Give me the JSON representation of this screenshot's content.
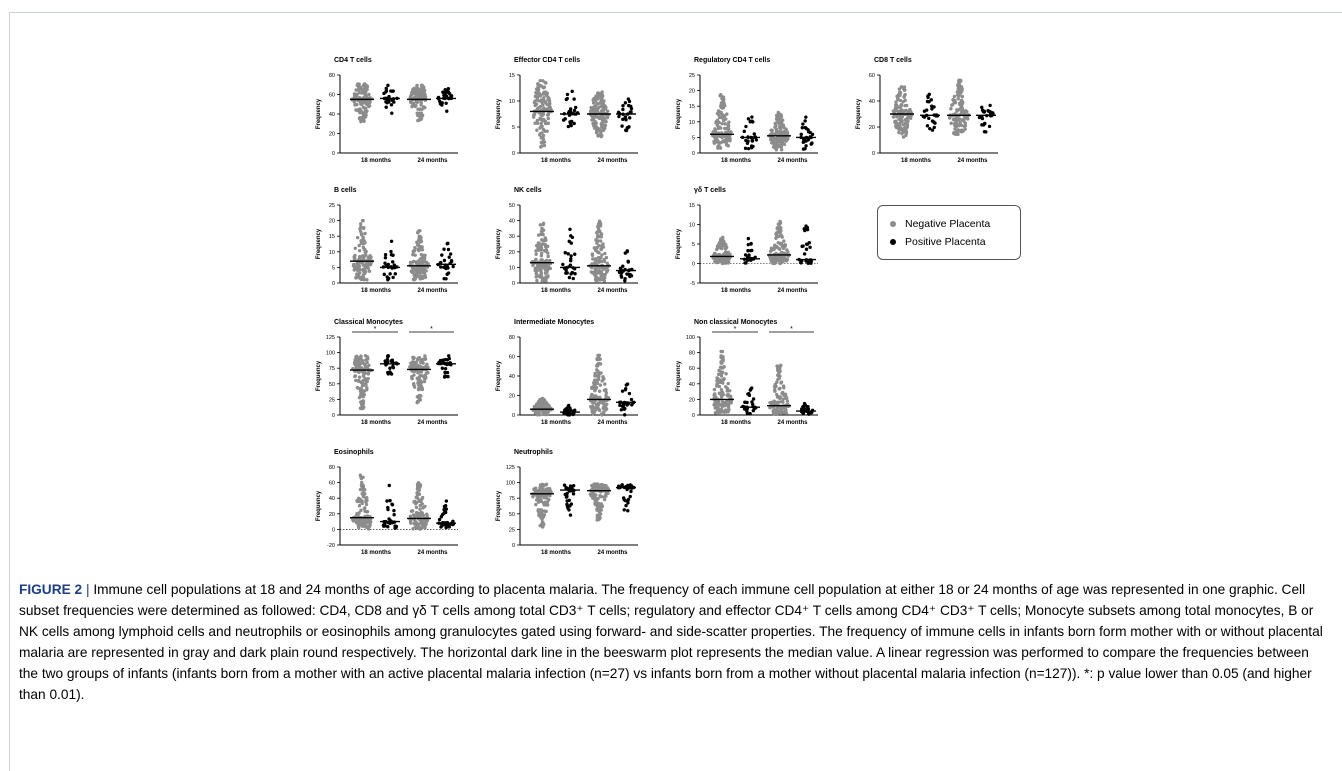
{
  "figure": {
    "label": "FIGURE 2",
    "separator": "|",
    "caption": "Immune cell populations at 18 and 24 months of age according to placenta malaria. The frequency of each immune cell population at either 18 or 24 months of age was represented in one graphic. Cell subset frequencies were determined as followed: CD4, CD8 and γδ T cells among total CD3⁺ T cells; regulatory and effector CD4⁺ T cells among CD4⁺ CD3⁺ T cells; Monocyte subsets among total monocytes, B or NK cells among lymphoid cells and neutrophils or eosinophils among granulocytes gated using forward- and side-scatter properties. The frequency of immune cells in infants born form mother with or without placental malaria are represented in gray and dark plain round respectively. The horizontal dark line in the beeswarm plot represents the median value. A linear regression was performed to compare the frequencies between the two groups of infants (infants born from a mother with an active placental malaria infection (n=27) vs infants born from a mother without placental malaria infection (n=127)). *: p value lower than 0.05 (and higher than 0.01)."
  },
  "legend": {
    "items": [
      {
        "label": "Negative Placenta",
        "color": "#8c8c8c"
      },
      {
        "label": "Positive Placenta",
        "color": "#000000"
      }
    ]
  },
  "colors": {
    "negative": "#8c8c8c",
    "positive": "#000000",
    "caption_label": "#1b3f8b"
  },
  "chart_data": [
    {
      "type": "scatter",
      "title": "CD4 T cells",
      "ylabel": "Frequency",
      "ylim": [
        0,
        80
      ],
      "yticks": [
        0,
        20,
        40,
        60,
        80
      ],
      "zero_line": false,
      "groups": [
        "18 months",
        "24 months"
      ],
      "series": [
        {
          "name": "Negative Placenta",
          "median": [
            55,
            55
          ],
          "range": [
            [
              32,
              72
            ],
            [
              33,
              70
            ]
          ],
          "n": 127
        },
        {
          "name": "Positive Placenta",
          "median": [
            56,
            56
          ],
          "range": [
            [
              40,
              70
            ],
            [
              42,
              68
            ]
          ],
          "n": 27
        }
      ],
      "significance": []
    },
    {
      "type": "scatter",
      "title": "Effector CD4 T cells",
      "ylabel": "Frequency",
      "ylim": [
        0,
        15
      ],
      "yticks": [
        0,
        5,
        10,
        15
      ],
      "zero_line": false,
      "groups": [
        "18 months",
        "24 months"
      ],
      "series": [
        {
          "name": "Negative Placenta",
          "median": [
            8,
            7.5
          ],
          "range": [
            [
              1,
              14
            ],
            [
              3,
              12
            ]
          ],
          "n": 127
        },
        {
          "name": "Positive Placenta",
          "median": [
            7.5,
            7.5
          ],
          "range": [
            [
              3.5,
              12
            ],
            [
              4,
              10.5
            ]
          ],
          "n": 27
        }
      ],
      "significance": []
    },
    {
      "type": "scatter",
      "title": "Regulatory CD4 T cells",
      "ylabel": "Frequency",
      "ylim": [
        0,
        25
      ],
      "yticks": [
        0,
        5,
        10,
        15,
        20,
        25
      ],
      "zero_line": false,
      "groups": [
        "18 months",
        "24 months"
      ],
      "series": [
        {
          "name": "Negative Placenta",
          "median": [
            6,
            5.5
          ],
          "range": [
            [
              1,
              19
            ],
            [
              1,
              13
            ]
          ],
          "n": 127
        },
        {
          "name": "Positive Placenta",
          "median": [
            5,
            5
          ],
          "range": [
            [
              1,
              12
            ],
            [
              1,
              12
            ]
          ],
          "n": 27
        }
      ],
      "significance": []
    },
    {
      "type": "scatter",
      "title": "CD8 T cells",
      "ylabel": "Frequency",
      "ylim": [
        0,
        60
      ],
      "yticks": [
        0,
        20,
        40,
        60
      ],
      "zero_line": false,
      "groups": [
        "18 months",
        "24 months"
      ],
      "series": [
        {
          "name": "Negative Placenta",
          "median": [
            30,
            29
          ],
          "range": [
            [
              12,
              52
            ],
            [
              14,
              56
            ]
          ],
          "n": 127
        },
        {
          "name": "Positive Placenta",
          "median": [
            29,
            29
          ],
          "range": [
            [
              17,
              46
            ],
            [
              15,
              38
            ]
          ],
          "n": 27
        }
      ],
      "significance": []
    },
    {
      "type": "scatter",
      "title": "B cells",
      "ylabel": "Frequency",
      "ylim": [
        0,
        25
      ],
      "yticks": [
        0,
        5,
        10,
        15,
        20,
        25
      ],
      "zero_line": false,
      "groups": [
        "18 months",
        "24 months"
      ],
      "series": [
        {
          "name": "Negative Placenta",
          "median": [
            7,
            5.5
          ],
          "range": [
            [
              1,
              20
            ],
            [
              1,
              17
            ]
          ],
          "n": 127
        },
        {
          "name": "Positive Placenta",
          "median": [
            5,
            6
          ],
          "range": [
            [
              1,
              14
            ],
            [
              1,
              13.5
            ]
          ],
          "n": 27
        }
      ],
      "significance": []
    },
    {
      "type": "scatter",
      "title": "NK cells",
      "ylabel": "Frequency",
      "ylim": [
        0,
        50
      ],
      "yticks": [
        0,
        10,
        20,
        30,
        40,
        50
      ],
      "zero_line": false,
      "groups": [
        "18 months",
        "24 months"
      ],
      "series": [
        {
          "name": "Negative Placenta",
          "median": [
            13,
            11
          ],
          "range": [
            [
              1,
              39
            ],
            [
              1,
              40
            ]
          ],
          "n": 127
        },
        {
          "name": "Positive Placenta",
          "median": [
            10,
            8
          ],
          "range": [
            [
              2,
              42
            ],
            [
              1,
              21
            ]
          ],
          "n": 27
        }
      ],
      "significance": []
    },
    {
      "type": "scatter",
      "title": "γδ T cells",
      "ylabel": "Frequency",
      "ylim": [
        -5,
        15
      ],
      "yticks": [
        -5,
        0,
        5,
        10,
        15
      ],
      "zero_line": true,
      "groups": [
        "18 months",
        "24 months"
      ],
      "series": [
        {
          "name": "Negative Placenta",
          "median": [
            1.8,
            2.2
          ],
          "range": [
            [
              0,
              7
            ],
            [
              0,
              11
            ]
          ],
          "n": 127
        },
        {
          "name": "Positive Placenta",
          "median": [
            1.2,
            1
          ],
          "range": [
            [
              0,
              6.5
            ],
            [
              0,
              11
            ]
          ],
          "n": 27
        }
      ],
      "significance": []
    },
    {
      "type": "scatter",
      "title": "Classical Monocytes",
      "ylabel": "Frequency",
      "ylim": [
        0,
        125
      ],
      "yticks": [
        0,
        25,
        50,
        75,
        100,
        125
      ],
      "zero_line": false,
      "groups": [
        "18 months",
        "24 months"
      ],
      "series": [
        {
          "name": "Negative Placenta",
          "median": [
            72,
            73
          ],
          "range": [
            [
              10,
              95
            ],
            [
              18,
              95
            ]
          ],
          "n": 127
        },
        {
          "name": "Positive Placenta",
          "median": [
            82,
            82
          ],
          "range": [
            [
              65,
              95
            ],
            [
              58,
              95
            ]
          ],
          "n": 27
        }
      ],
      "significance": [
        "*",
        "*"
      ]
    },
    {
      "type": "scatter",
      "title": "Intermediate Monocytes",
      "ylabel": "Frequency",
      "ylim": [
        0,
        80
      ],
      "yticks": [
        0,
        20,
        40,
        60,
        80
      ],
      "zero_line": false,
      "groups": [
        "18 months",
        "24 months"
      ],
      "series": [
        {
          "name": "Negative Placenta",
          "median": [
            6,
            16
          ],
          "range": [
            [
              0,
              17
            ],
            [
              0,
              62
            ]
          ],
          "n": 127
        },
        {
          "name": "Positive Placenta",
          "median": [
            3,
            13
          ],
          "range": [
            [
              0,
              10
            ],
            [
              0,
              33
            ]
          ],
          "n": 27
        }
      ],
      "significance": []
    },
    {
      "type": "scatter",
      "title": "Non classical Monocytes",
      "ylabel": "Frequency",
      "ylim": [
        0,
        100
      ],
      "yticks": [
        0,
        20,
        40,
        60,
        80,
        100
      ],
      "zero_line": false,
      "groups": [
        "18 months",
        "24 months"
      ],
      "series": [
        {
          "name": "Negative Placenta",
          "median": [
            20,
            12
          ],
          "range": [
            [
              2,
              82
            ],
            [
              1,
              66
            ]
          ],
          "n": 127
        },
        {
          "name": "Positive Placenta",
          "median": [
            10,
            5
          ],
          "range": [
            [
              1,
              35
            ],
            [
              1,
              15
            ]
          ],
          "n": 27
        }
      ],
      "significance": [
        "*",
        "*"
      ]
    },
    {
      "type": "scatter",
      "title": "Eosinophils",
      "ylabel": "Frequency",
      "ylim": [
        -20,
        80
      ],
      "yticks": [
        -20,
        0,
        20,
        40,
        60,
        80
      ],
      "zero_line": true,
      "groups": [
        "18 months",
        "24 months"
      ],
      "series": [
        {
          "name": "Negative Placenta",
          "median": [
            15,
            14
          ],
          "range": [
            [
              0,
              70
            ],
            [
              0,
              60
            ]
          ],
          "n": 127
        },
        {
          "name": "Positive Placenta",
          "median": [
            10,
            8
          ],
          "range": [
            [
              0,
              62
            ],
            [
              0,
              40
            ]
          ],
          "n": 27
        }
      ],
      "significance": []
    },
    {
      "type": "scatter",
      "title": "Neutrophils",
      "ylabel": "Frequency",
      "ylim": [
        0,
        125
      ],
      "yticks": [
        0,
        25,
        50,
        75,
        100,
        125
      ],
      "zero_line": false,
      "groups": [
        "18 months",
        "24 months"
      ],
      "series": [
        {
          "name": "Negative Placenta",
          "median": [
            82,
            87
          ],
          "range": [
            [
              25,
              98
            ],
            [
              40,
              98
            ]
          ],
          "n": 127
        },
        {
          "name": "Positive Placenta",
          "median": [
            88,
            92
          ],
          "range": [
            [
              38,
              98
            ],
            [
              50,
              98
            ]
          ],
          "n": 27
        }
      ],
      "significance": []
    }
  ]
}
